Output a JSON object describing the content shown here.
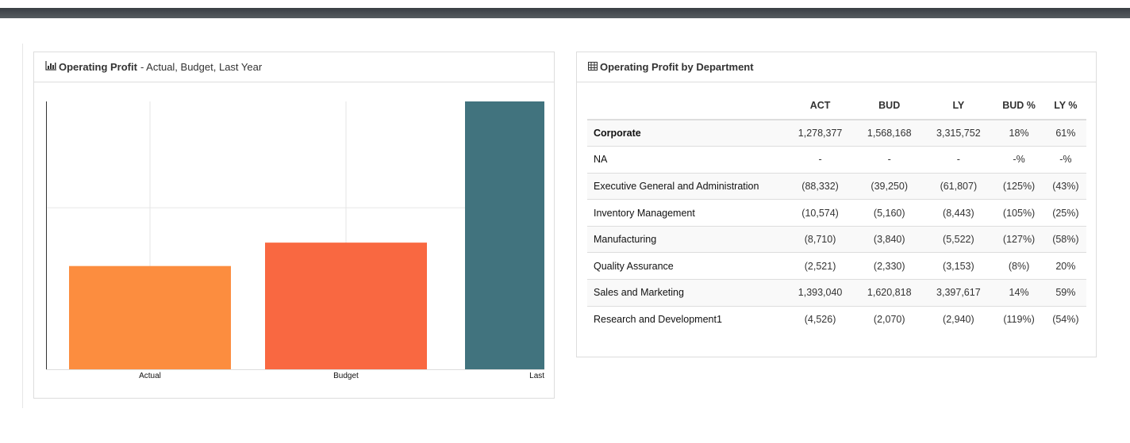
{
  "chart_panel": {
    "icon": "bar-chart-icon",
    "title": "Operating Profit",
    "subtitle": "- Actual, Budget, Last Year"
  },
  "table_panel": {
    "icon": "table-icon",
    "title": "Operating Profit by Department"
  },
  "chart_data": {
    "type": "bar",
    "title": "Operating Profit - Actual, Budget, Last Year",
    "categories": [
      "Actual",
      "Budget",
      "Last Year"
    ],
    "visible_labels": [
      "Actual",
      "Budget",
      "La"
    ],
    "values": [
      1278377,
      1568168,
      3315752
    ],
    "colors": [
      "#fc8d3f",
      "#f96841",
      "#41737e"
    ],
    "ylim": [
      0,
      3315752
    ],
    "gridlines": [
      2000000
    ],
    "xlabel": "",
    "ylabel": ""
  },
  "table": {
    "columns": [
      "",
      "ACT",
      "BUD",
      "LY",
      "BUD %",
      "LY %"
    ],
    "rows": [
      [
        "Corporate",
        "1,278,377",
        "1,568,168",
        "3,315,752",
        "18%",
        "61%"
      ],
      [
        "NA",
        "-",
        "-",
        "-",
        "-%",
        "-%"
      ],
      [
        "Executive General and Administration",
        "(88,332)",
        "(39,250)",
        "(61,807)",
        "(125%)",
        "(43%)"
      ],
      [
        "Inventory Management",
        "(10,574)",
        "(5,160)",
        "(8,443)",
        "(105%)",
        "(25%)"
      ],
      [
        "Manufacturing",
        "(8,710)",
        "(3,840)",
        "(5,522)",
        "(127%)",
        "(58%)"
      ],
      [
        "Quality Assurance",
        "(2,521)",
        "(2,330)",
        "(3,153)",
        "(8%)",
        "20%"
      ],
      [
        "Sales and Marketing",
        "1,393,040",
        "1,620,818",
        "3,397,617",
        "14%",
        "59%"
      ],
      [
        "Research and Development1",
        "(4,526)",
        "(2,070)",
        "(2,940)",
        "(119%)",
        "(54%)"
      ]
    ]
  }
}
